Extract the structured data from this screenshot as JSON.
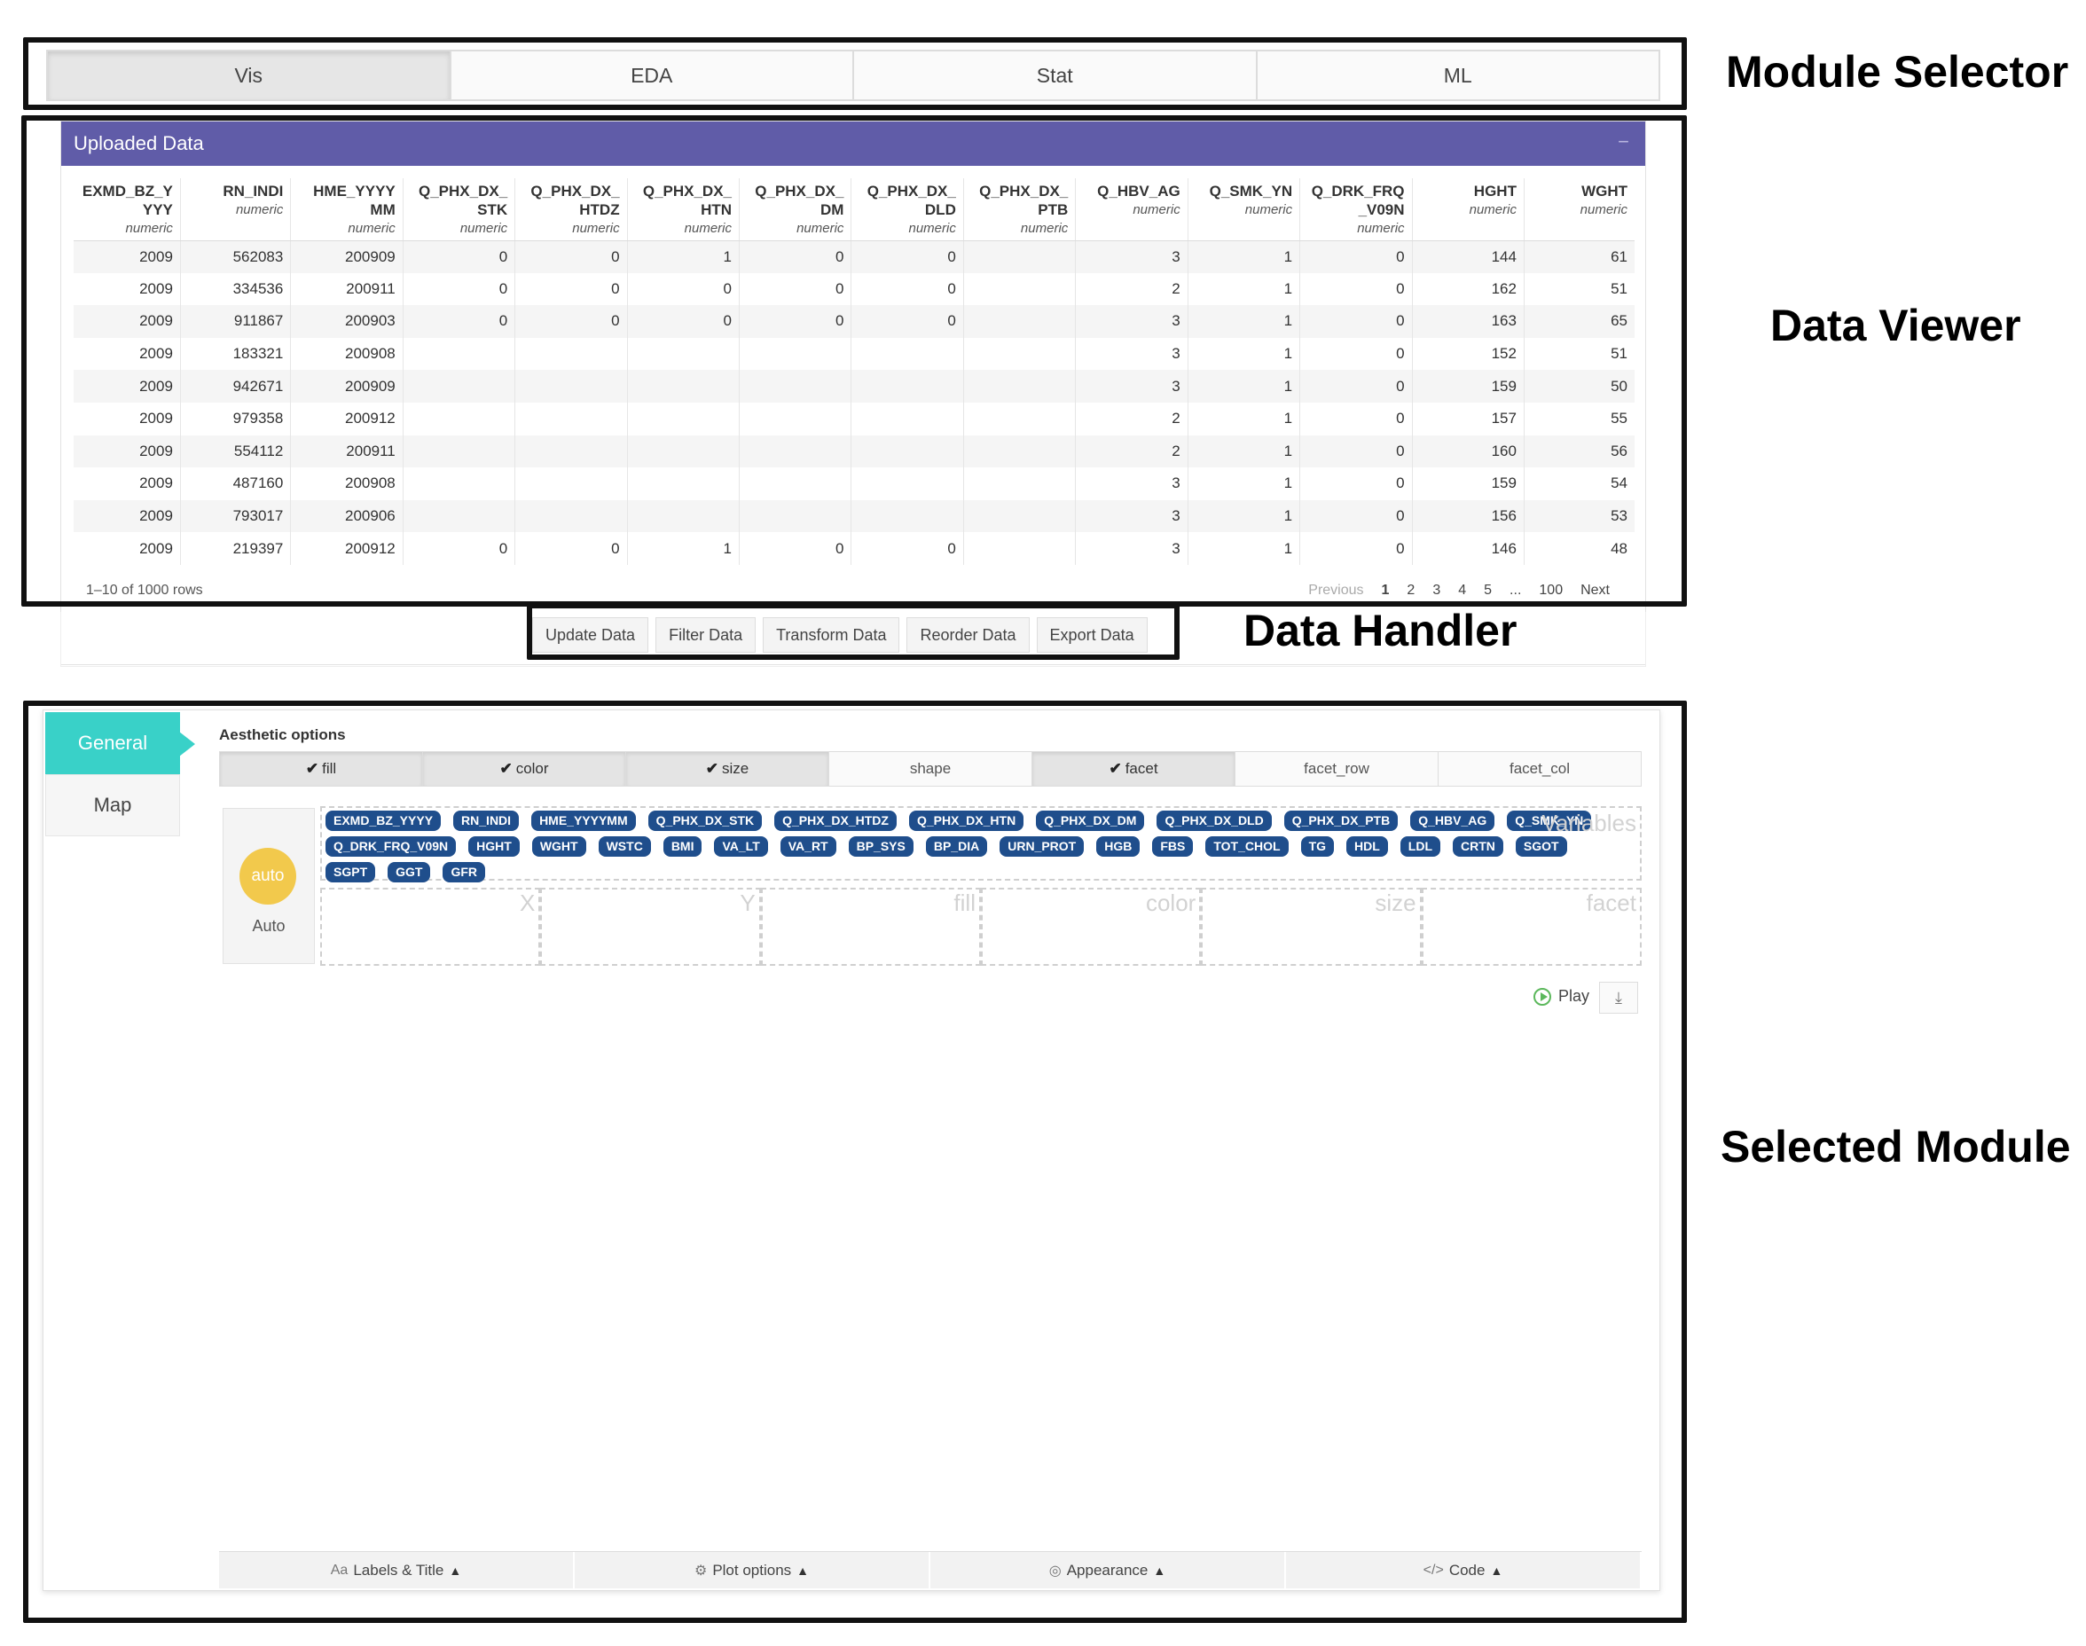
{
  "module_tabs": [
    "Vis",
    "EDA",
    "Stat",
    "ML"
  ],
  "data_box": {
    "title": "Uploaded Data",
    "collapse": "−",
    "columns": [
      {
        "name": "EXMD_BZ_Y YYY",
        "type": "numeric"
      },
      {
        "name": "RN_INDI",
        "type": "numeric"
      },
      {
        "name": "HME_YYYY MM",
        "type": "numeric"
      },
      {
        "name": "Q_PHX_DX_ STK",
        "type": "numeric"
      },
      {
        "name": "Q_PHX_DX_ HTDZ",
        "type": "numeric"
      },
      {
        "name": "Q_PHX_DX_ HTN",
        "type": "numeric"
      },
      {
        "name": "Q_PHX_DX_ DM",
        "type": "numeric"
      },
      {
        "name": "Q_PHX_DX_ DLD",
        "type": "numeric"
      },
      {
        "name": "Q_PHX_DX_ PTB",
        "type": "numeric"
      },
      {
        "name": "Q_HBV_AG",
        "type": "numeric"
      },
      {
        "name": "Q_SMK_YN",
        "type": "numeric"
      },
      {
        "name": "Q_DRK_FRQ _V09N",
        "type": "numeric"
      },
      {
        "name": "HGHT",
        "type": "numeric"
      },
      {
        "name": "WGHT",
        "type": "numeric"
      }
    ],
    "rows": [
      [
        "2009",
        "562083",
        "200909",
        "0",
        "0",
        "1",
        "0",
        "0",
        "",
        "3",
        "1",
        "0",
        "144",
        "61"
      ],
      [
        "2009",
        "334536",
        "200911",
        "0",
        "0",
        "0",
        "0",
        "0",
        "",
        "2",
        "1",
        "0",
        "162",
        "51"
      ],
      [
        "2009",
        "911867",
        "200903",
        "0",
        "0",
        "0",
        "0",
        "0",
        "",
        "3",
        "1",
        "0",
        "163",
        "65"
      ],
      [
        "2009",
        "183321",
        "200908",
        "",
        "",
        "",
        "",
        "",
        "",
        "3",
        "1",
        "0",
        "152",
        "51"
      ],
      [
        "2009",
        "942671",
        "200909",
        "",
        "",
        "",
        "",
        "",
        "",
        "3",
        "1",
        "0",
        "159",
        "50"
      ],
      [
        "2009",
        "979358",
        "200912",
        "",
        "",
        "",
        "",
        "",
        "",
        "2",
        "1",
        "0",
        "157",
        "55"
      ],
      [
        "2009",
        "554112",
        "200911",
        "",
        "",
        "",
        "",
        "",
        "",
        "2",
        "1",
        "0",
        "160",
        "56"
      ],
      [
        "2009",
        "487160",
        "200908",
        "",
        "",
        "",
        "",
        "",
        "",
        "3",
        "1",
        "0",
        "159",
        "54"
      ],
      [
        "2009",
        "793017",
        "200906",
        "",
        "",
        "",
        "",
        "",
        "",
        "3",
        "1",
        "0",
        "156",
        "53"
      ],
      [
        "2009",
        "219397",
        "200912",
        "0",
        "0",
        "1",
        "0",
        "0",
        "",
        "3",
        "1",
        "0",
        "146",
        "48"
      ]
    ],
    "rows_info": "1–10 of 1000 rows",
    "pager": [
      "Previous",
      "1",
      "2",
      "3",
      "4",
      "5",
      "...",
      "100",
      "Next"
    ]
  },
  "handler_buttons": [
    "Update Data",
    "Filter Data",
    "Transform Data",
    "Reorder Data",
    "Export Data"
  ],
  "module": {
    "side_tabs": [
      "General",
      "Map"
    ],
    "aesthetic_title": "Aesthetic options",
    "aesthetics": [
      {
        "label": "fill",
        "on": true
      },
      {
        "label": "color",
        "on": true
      },
      {
        "label": "size",
        "on": true
      },
      {
        "label": "shape",
        "on": false
      },
      {
        "label": "facet",
        "on": true
      },
      {
        "label": "facet_row",
        "on": false
      },
      {
        "label": "facet_col",
        "on": false
      }
    ],
    "auto_circle": "auto",
    "auto_label": "Auto",
    "variables_label": "Variables",
    "variables": [
      "EXMD_BZ_YYYY",
      "RN_INDI",
      "HME_YYYYMM",
      "Q_PHX_DX_STK",
      "Q_PHX_DX_HTDZ",
      "Q_PHX_DX_HTN",
      "Q_PHX_DX_DM",
      "Q_PHX_DX_DLD",
      "Q_PHX_DX_PTB",
      "Q_HBV_AG",
      "Q_SMK_YN",
      "Q_DRK_FRQ_V09N",
      "HGHT",
      "WGHT",
      "WSTC",
      "BMI",
      "VA_LT",
      "VA_RT",
      "BP_SYS",
      "BP_DIA",
      "URN_PROT",
      "HGB",
      "FBS",
      "TOT_CHOL",
      "TG",
      "HDL",
      "LDL",
      "CRTN",
      "SGOT",
      "SGPT",
      "GGT",
      "GFR"
    ],
    "drop_zones": [
      "X",
      "Y",
      "fill",
      "color",
      "size",
      "facet"
    ],
    "play_label": "Play",
    "bottom": [
      {
        "icon": "Aa",
        "label": "Labels & Title"
      },
      {
        "icon": "⚙",
        "label": "Plot options"
      },
      {
        "icon": "◎",
        "label": "Appearance"
      },
      {
        "icon": "</>",
        "label": "Code"
      }
    ]
  },
  "annotations": {
    "module_selector": "Module Selector",
    "data_viewer": "Data Viewer",
    "data_handler": "Data Handler",
    "selected_module": "Selected Module"
  },
  "colors": {
    "header_purple": "#605ca8",
    "side_tab_teal": "#39d1c8",
    "chip_blue": "#1f4e8c",
    "auto_yellow": "#f2c94c"
  }
}
